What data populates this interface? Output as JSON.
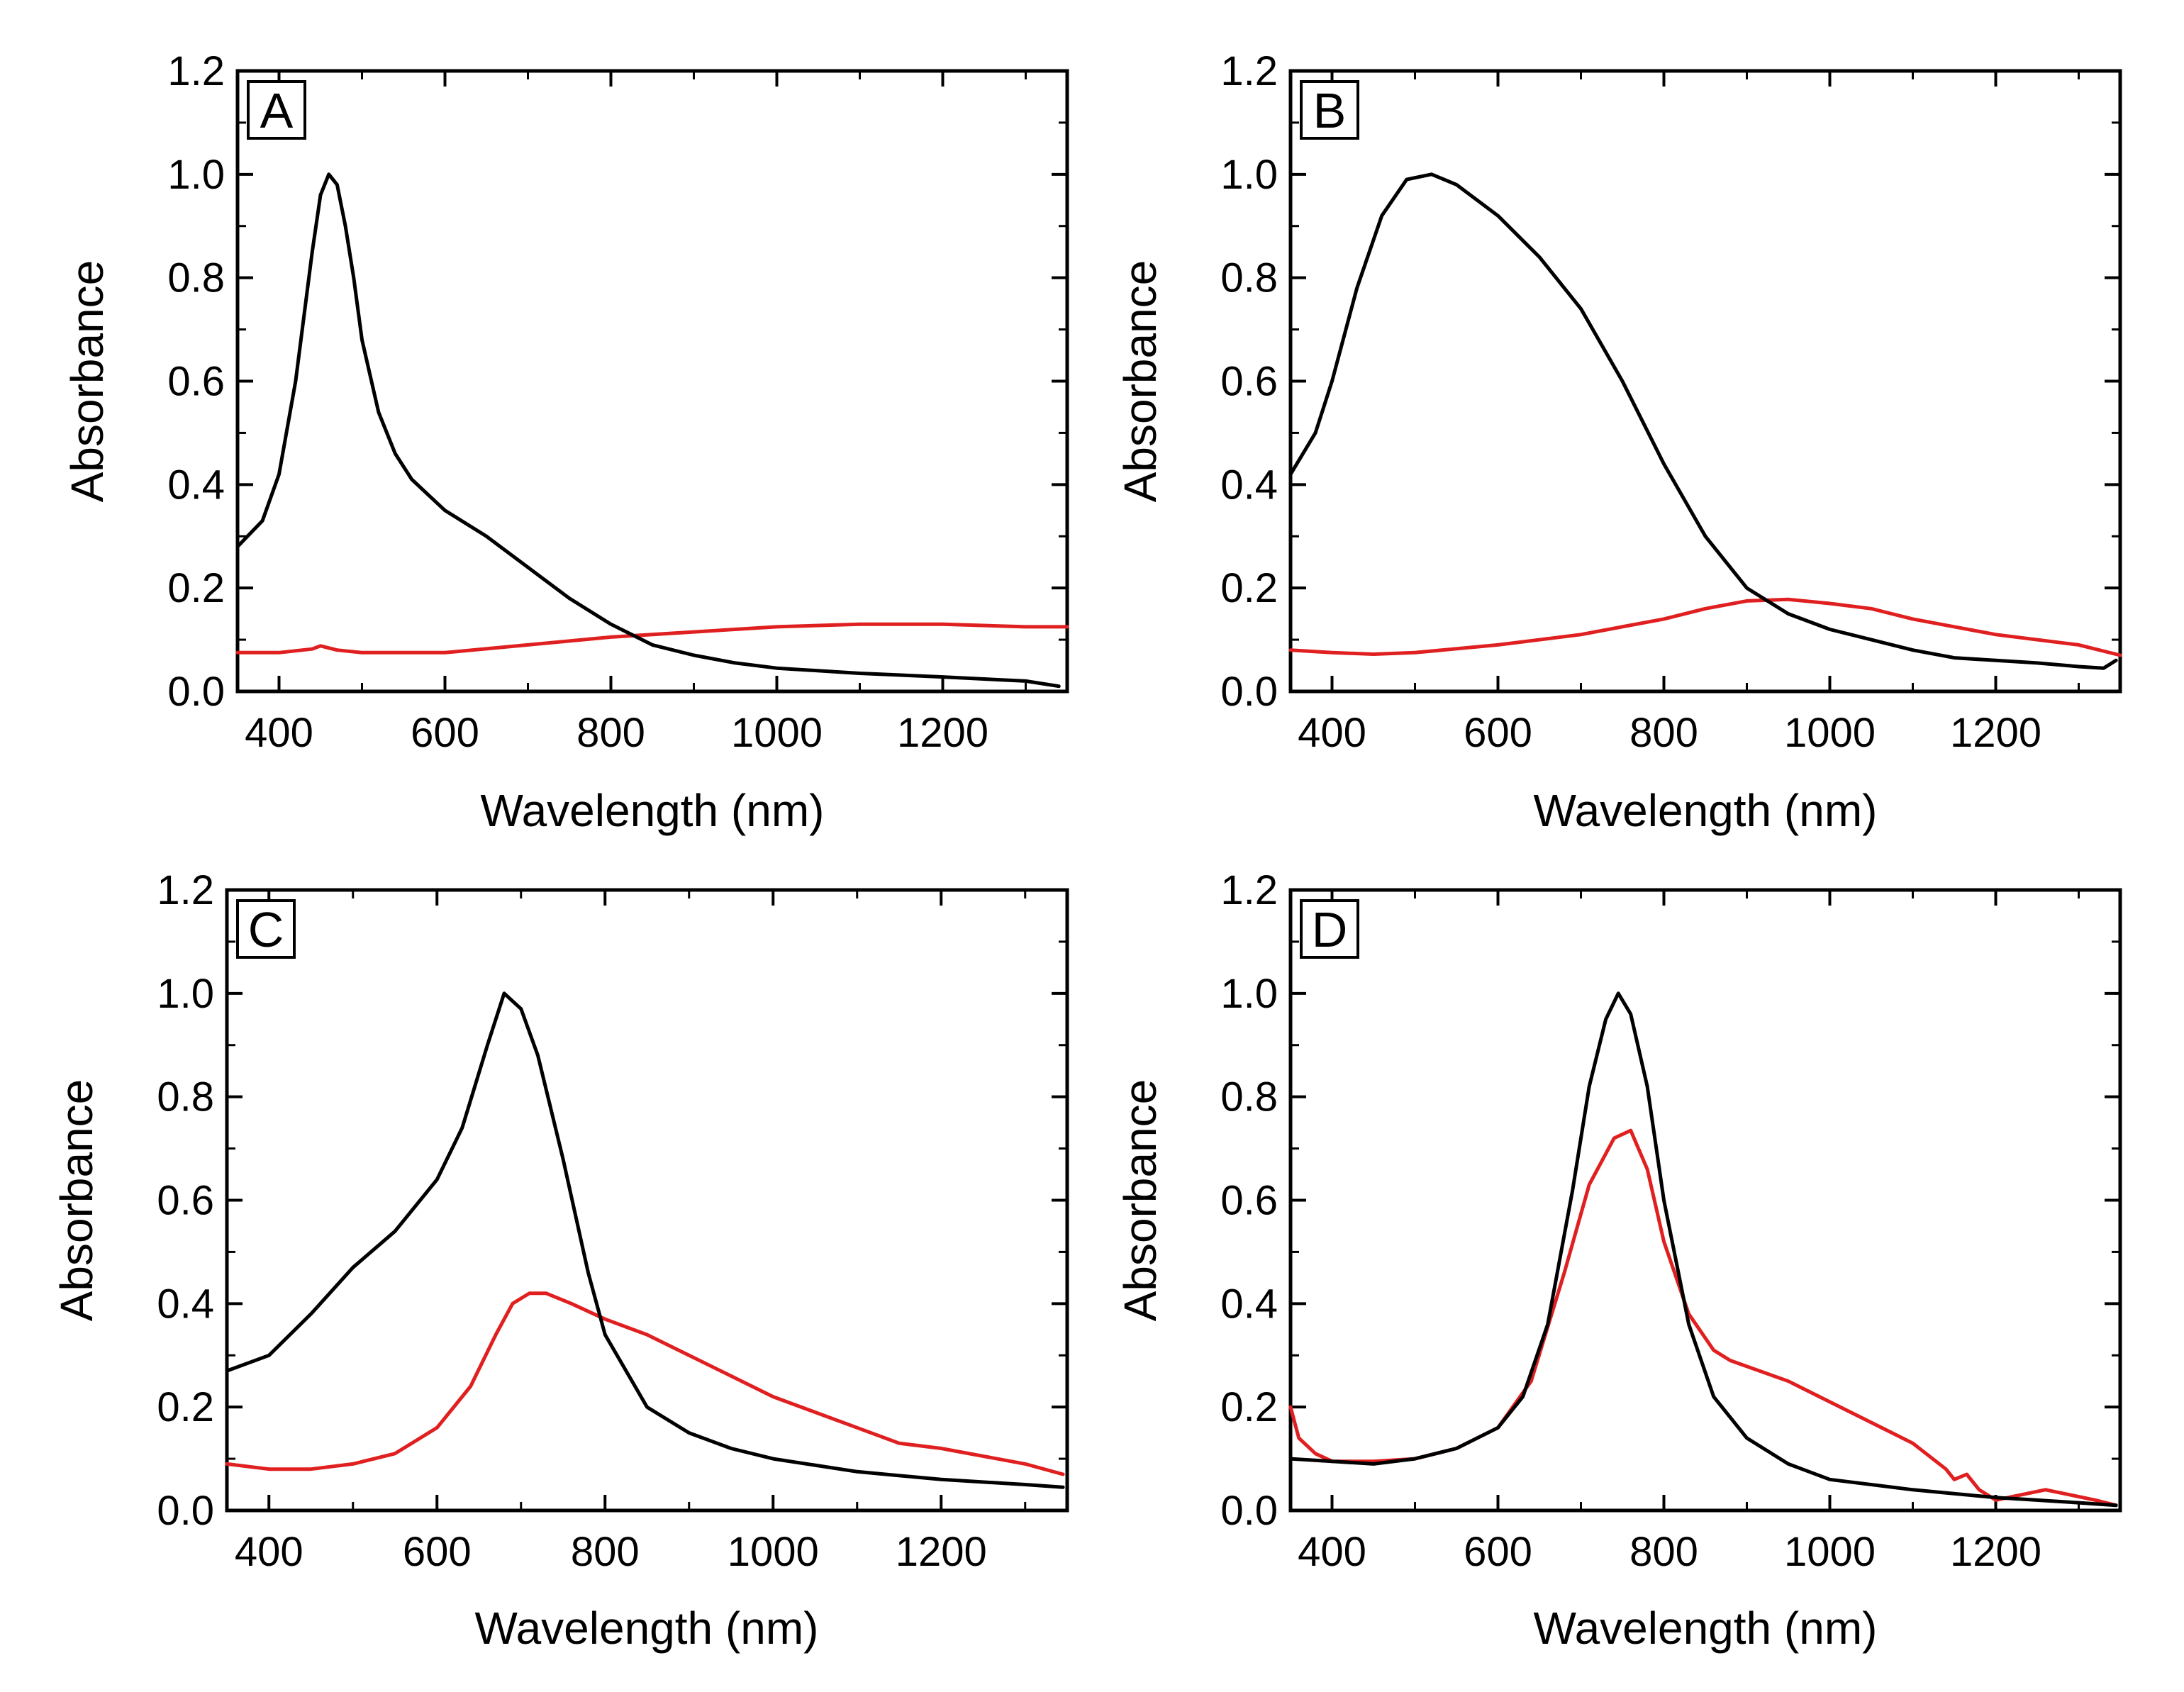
{
  "colors": {
    "black_series": "#000000",
    "red_series": "#e02020",
    "frame": "#000000",
    "background": "#ffffff"
  },
  "chart_data": [
    {
      "type": "line",
      "panel_label": "A",
      "xlabel": "Wavelength (nm)",
      "ylabel": "Absorbance",
      "xlim": [
        350,
        1350
      ],
      "ylim": [
        0,
        1.2
      ],
      "xticks": [
        400,
        600,
        800,
        1000,
        1200
      ],
      "xtick_labels": [
        "400",
        "600",
        "800",
        "1000",
        "1200"
      ],
      "yticks": [
        0,
        0.2,
        0.4,
        0.6,
        0.8,
        1.0,
        1.2
      ],
      "ytick_labels": [
        "0.0",
        "0.2",
        "0.4",
        "0.6",
        "0.8",
        "1.0",
        "1.2"
      ],
      "series": [
        {
          "name": "black",
          "color": "#000000",
          "x": [
            350,
            380,
            400,
            420,
            440,
            450,
            460,
            470,
            480,
            490,
            500,
            520,
            540,
            560,
            580,
            600,
            650,
            700,
            750,
            800,
            850,
            900,
            950,
            1000,
            1100,
            1200,
            1300,
            1340
          ],
          "y": [
            0.28,
            0.33,
            0.42,
            0.6,
            0.85,
            0.96,
            1.0,
            0.98,
            0.9,
            0.8,
            0.68,
            0.54,
            0.46,
            0.41,
            0.38,
            0.35,
            0.3,
            0.24,
            0.18,
            0.13,
            0.09,
            0.07,
            0.055,
            0.045,
            0.035,
            0.028,
            0.02,
            0.01
          ]
        },
        {
          "name": "red",
          "color": "#e02020",
          "x": [
            350,
            400,
            440,
            450,
            470,
            500,
            600,
            700,
            800,
            900,
            1000,
            1100,
            1200,
            1300,
            1350
          ],
          "y": [
            0.075,
            0.075,
            0.082,
            0.088,
            0.08,
            0.075,
            0.075,
            0.09,
            0.105,
            0.115,
            0.125,
            0.13,
            0.13,
            0.125,
            0.125
          ]
        }
      ]
    },
    {
      "type": "line",
      "panel_label": "B",
      "xlabel": "Wavelength (nm)",
      "ylabel": "Absorbance",
      "xlim": [
        350,
        1350
      ],
      "ylim": [
        0,
        1.2
      ],
      "xticks": [
        400,
        600,
        800,
        1000,
        1200
      ],
      "xtick_labels": [
        "400",
        "600",
        "800",
        "1000",
        "1200"
      ],
      "yticks": [
        0,
        0.2,
        0.4,
        0.6,
        0.8,
        1.0,
        1.2
      ],
      "ytick_labels": [
        "0.0",
        "0.2",
        "0.4",
        "0.6",
        "0.8",
        "1.0",
        "1.2"
      ],
      "series": [
        {
          "name": "black",
          "color": "#000000",
          "x": [
            350,
            380,
            400,
            430,
            460,
            490,
            520,
            550,
            600,
            650,
            700,
            750,
            800,
            850,
            900,
            950,
            1000,
            1050,
            1100,
            1150,
            1200,
            1250,
            1300,
            1330,
            1345
          ],
          "y": [
            0.42,
            0.5,
            0.6,
            0.78,
            0.92,
            0.99,
            1.0,
            0.98,
            0.92,
            0.84,
            0.74,
            0.6,
            0.44,
            0.3,
            0.2,
            0.15,
            0.12,
            0.1,
            0.08,
            0.065,
            0.06,
            0.055,
            0.048,
            0.045,
            0.06
          ]
        },
        {
          "name": "red",
          "color": "#e02020",
          "x": [
            350,
            400,
            450,
            500,
            600,
            700,
            800,
            850,
            900,
            950,
            1000,
            1050,
            1100,
            1200,
            1300,
            1350
          ],
          "y": [
            0.08,
            0.075,
            0.072,
            0.075,
            0.09,
            0.11,
            0.14,
            0.16,
            0.175,
            0.178,
            0.17,
            0.16,
            0.14,
            0.11,
            0.09,
            0.07
          ]
        }
      ]
    },
    {
      "type": "line",
      "panel_label": "C",
      "xlabel": "Wavelength (nm)",
      "ylabel": "Absorbance",
      "xlim": [
        350,
        1350
      ],
      "ylim": [
        0,
        1.2
      ],
      "xticks": [
        400,
        600,
        800,
        1000,
        1200
      ],
      "xtick_labels": [
        "400",
        "600",
        "800",
        "1000",
        "1200"
      ],
      "yticks": [
        0,
        0.2,
        0.4,
        0.6,
        0.8,
        1.0,
        1.2
      ],
      "ytick_labels": [
        "0.0",
        "0.2",
        "0.4",
        "0.6",
        "0.8",
        "1.0",
        "1.2"
      ],
      "series": [
        {
          "name": "black",
          "color": "#000000",
          "x": [
            350,
            400,
            450,
            500,
            550,
            600,
            630,
            660,
            680,
            700,
            720,
            750,
            780,
            800,
            850,
            900,
            950,
            1000,
            1100,
            1200,
            1300,
            1345
          ],
          "y": [
            0.27,
            0.3,
            0.38,
            0.47,
            0.54,
            0.64,
            0.74,
            0.9,
            1.0,
            0.97,
            0.88,
            0.68,
            0.46,
            0.34,
            0.2,
            0.15,
            0.12,
            0.1,
            0.075,
            0.06,
            0.05,
            0.045
          ]
        },
        {
          "name": "red",
          "color": "#e02020",
          "x": [
            350,
            400,
            450,
            500,
            550,
            600,
            640,
            670,
            690,
            710,
            730,
            760,
            800,
            850,
            900,
            950,
            1000,
            1100,
            1150,
            1200,
            1300,
            1345
          ],
          "y": [
            0.09,
            0.08,
            0.08,
            0.09,
            0.11,
            0.16,
            0.24,
            0.34,
            0.4,
            0.42,
            0.42,
            0.4,
            0.37,
            0.34,
            0.3,
            0.26,
            0.22,
            0.16,
            0.13,
            0.12,
            0.09,
            0.07
          ]
        }
      ]
    },
    {
      "type": "line",
      "panel_label": "D",
      "xlabel": "Wavelength (nm)",
      "ylabel": "Absorbance",
      "xlim": [
        350,
        1350
      ],
      "ylim": [
        0,
        1.2
      ],
      "xticks": [
        400,
        600,
        800,
        1000,
        1200
      ],
      "xtick_labels": [
        "400",
        "600",
        "800",
        "1000",
        "1200"
      ],
      "yticks": [
        0,
        0.2,
        0.4,
        0.6,
        0.8,
        1.0,
        1.2
      ],
      "ytick_labels": [
        "0.0",
        "0.2",
        "0.4",
        "0.6",
        "0.8",
        "1.0",
        "1.2"
      ],
      "series": [
        {
          "name": "black",
          "color": "#000000",
          "x": [
            350,
            400,
            450,
            500,
            550,
            600,
            630,
            660,
            690,
            710,
            730,
            745,
            760,
            780,
            800,
            830,
            860,
            900,
            950,
            1000,
            1100,
            1200,
            1300,
            1345
          ],
          "y": [
            0.1,
            0.095,
            0.09,
            0.1,
            0.12,
            0.16,
            0.22,
            0.36,
            0.62,
            0.82,
            0.95,
            1.0,
            0.96,
            0.82,
            0.6,
            0.36,
            0.22,
            0.14,
            0.09,
            0.06,
            0.04,
            0.025,
            0.015,
            0.01
          ]
        },
        {
          "name": "red",
          "color": "#e02020",
          "x": [
            350,
            360,
            380,
            400,
            450,
            500,
            550,
            600,
            640,
            680,
            710,
            740,
            760,
            780,
            800,
            830,
            860,
            880,
            950,
            1000,
            1050,
            1100,
            1140,
            1150,
            1165,
            1180,
            1200,
            1230,
            1260,
            1290,
            1320,
            1345
          ],
          "y": [
            0.2,
            0.14,
            0.11,
            0.095,
            0.095,
            0.1,
            0.12,
            0.16,
            0.25,
            0.46,
            0.63,
            0.72,
            0.735,
            0.66,
            0.52,
            0.38,
            0.31,
            0.29,
            0.25,
            0.21,
            0.17,
            0.13,
            0.08,
            0.06,
            0.07,
            0.04,
            0.02,
            0.03,
            0.04,
            0.03,
            0.02,
            0.01
          ]
        }
      ]
    }
  ]
}
